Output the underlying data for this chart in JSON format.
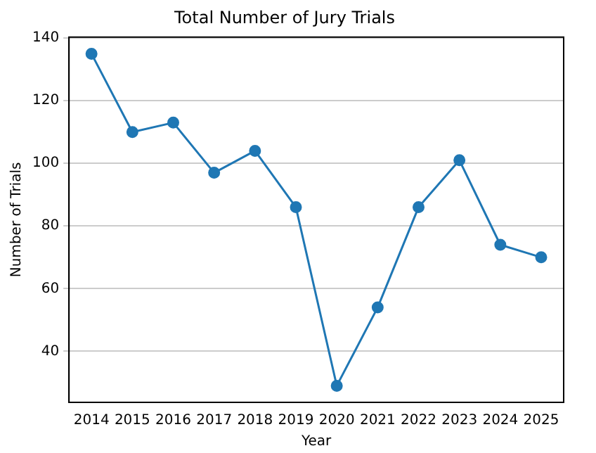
{
  "chart_data": {
    "type": "line",
    "title": "Total Number of Jury Trials",
    "xlabel": "Year",
    "ylabel": "Number of Trials",
    "x": [
      2014,
      2015,
      2016,
      2017,
      2018,
      2019,
      2020,
      2021,
      2022,
      2023,
      2024,
      2025
    ],
    "series": [
      {
        "color": "#1f77b4",
        "values": [
          135,
          110,
          113,
          97,
          104,
          86,
          29,
          54,
          86,
          101,
          74,
          70
        ]
      }
    ],
    "xlim": [
      2013.45,
      2025.55
    ],
    "xticks": [
      2014,
      2015,
      2016,
      2017,
      2018,
      2019,
      2020,
      2021,
      2022,
      2023,
      2024,
      2025
    ],
    "ylim": [
      23.7,
      140.3
    ],
    "yticks": [
      40,
      60,
      80,
      100,
      120,
      140
    ],
    "grid": "y",
    "marker": "circle",
    "line_style": "solid",
    "legend": false
  }
}
